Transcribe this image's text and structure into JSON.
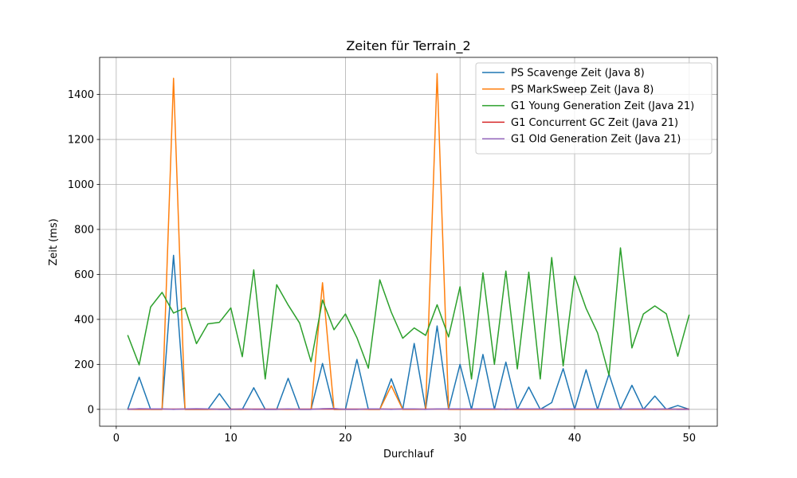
{
  "chart_data": {
    "type": "line",
    "title": "Zeiten für Terrain_2",
    "xlabel": "Durchlauf",
    "ylabel": "Zeit (ms)",
    "xlim": [
      -1.45,
      52.45
    ],
    "ylim": [
      -75,
      1565
    ],
    "xticks": [
      0,
      10,
      20,
      30,
      40,
      50
    ],
    "yticks": [
      0,
      200,
      400,
      600,
      800,
      1000,
      1200,
      1400
    ],
    "grid": true,
    "legend_position": "top-right",
    "x": [
      1,
      2,
      3,
      4,
      5,
      6,
      7,
      8,
      9,
      10,
      11,
      12,
      13,
      14,
      15,
      16,
      17,
      18,
      19,
      20,
      21,
      22,
      23,
      24,
      25,
      26,
      27,
      28,
      29,
      30,
      31,
      32,
      33,
      34,
      35,
      36,
      37,
      38,
      39,
      40,
      41,
      42,
      43,
      44,
      45,
      46,
      47,
      48,
      49,
      50
    ],
    "series": [
      {
        "name": "PS Scavenge Zeit (Java 8)",
        "color": "#1f77b4",
        "values": [
          0,
          143,
          0,
          0,
          685,
          0,
          0,
          0,
          70,
          0,
          0,
          96,
          0,
          0,
          138,
          0,
          0,
          204,
          0,
          0,
          222,
          0,
          0,
          136,
          0,
          293,
          0,
          371,
          0,
          200,
          0,
          244,
          0,
          210,
          0,
          99,
          0,
          30,
          181,
          0,
          176,
          0,
          157,
          0,
          107,
          0,
          59,
          0,
          17,
          0
        ]
      },
      {
        "name": "PS MarkSweep Zeit (Java 8)",
        "color": "#ff7f0e",
        "values": [
          0,
          0,
          0,
          0,
          1472,
          0,
          0,
          0,
          0,
          0,
          0,
          0,
          0,
          0,
          0,
          0,
          0,
          563,
          0,
          0,
          0,
          0,
          0,
          105,
          0,
          0,
          0,
          1493,
          0,
          0,
          0,
          0,
          0,
          0,
          0,
          0,
          0,
          0,
          0,
          0,
          0,
          0,
          0,
          0,
          0,
          0,
          0,
          0,
          0,
          0
        ]
      },
      {
        "name": "G1 Young Generation Zeit (Java 21)",
        "color": "#2ca02c",
        "values": [
          330,
          198,
          455,
          520,
          428,
          451,
          292,
          380,
          387,
          451,
          234,
          620,
          135,
          554,
          464,
          384,
          212,
          486,
          354,
          424,
          319,
          183,
          576,
          432,
          316,
          362,
          329,
          465,
          322,
          545,
          135,
          607,
          200,
          615,
          180,
          610,
          135,
          675,
          193,
          593,
          449,
          340,
          152,
          718,
          273,
          424,
          460,
          425,
          236,
          421
        ]
      },
      {
        "name": "G1 Concurrent GC Zeit (Java 21)",
        "color": "#d62728",
        "values": [
          1,
          1,
          1,
          1,
          1,
          1,
          1,
          1,
          1,
          1,
          1,
          1,
          1,
          1,
          1,
          1,
          1,
          1,
          1,
          1,
          1,
          1,
          1,
          1,
          1,
          1,
          1,
          1,
          1,
          1,
          1,
          1,
          1,
          1,
          1,
          1,
          1,
          1,
          1,
          1,
          1,
          1,
          1,
          1,
          1,
          1,
          1,
          1,
          1,
          1
        ]
      },
      {
        "name": "G1 Old Generation Zeit (Java 21)",
        "color": "#9467bd",
        "values": [
          0,
          3,
          2,
          2,
          0,
          2,
          3,
          2,
          0,
          0,
          2,
          0,
          0,
          0,
          2,
          0,
          0,
          3,
          4,
          0,
          0,
          2,
          2,
          0,
          2,
          2,
          0,
          2,
          2,
          2,
          2,
          2,
          2,
          0,
          2,
          2,
          2,
          0,
          2,
          2,
          2,
          2,
          2,
          0,
          2,
          2,
          0,
          2,
          0,
          0
        ]
      }
    ]
  }
}
